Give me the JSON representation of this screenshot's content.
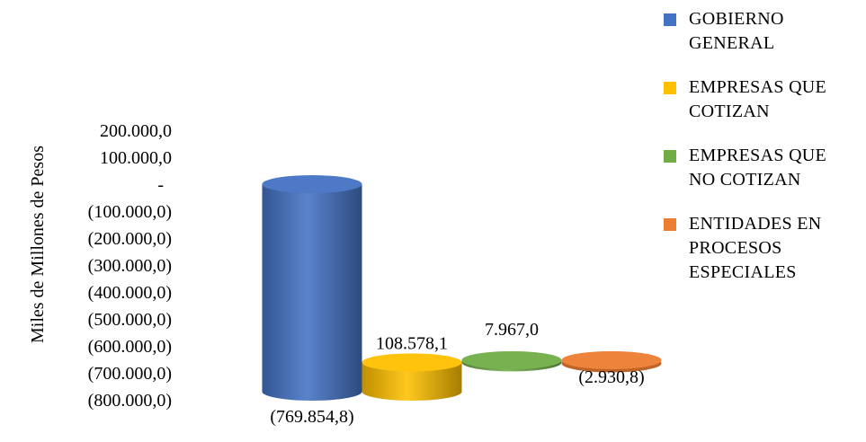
{
  "chart_data": {
    "type": "bar",
    "style": "3d-cylinder",
    "ylabel": "Miles de Millones de Pesos",
    "y_ticks": [
      "200.000,0",
      "100.000,0",
      "-",
      "(100.000,0)",
      "(200.000,0)",
      "(300.000,0)",
      "(400.000,0)",
      "(500.000,0)",
      "(600.000,0)",
      "(700.000,0)",
      "(800.000,0)"
    ],
    "ylim": [
      -800000,
      200000
    ],
    "grid": false,
    "legend_position": "right",
    "series": [
      {
        "name": "GOBIERNO GENERAL",
        "value": -769854.8,
        "label": "(769.854,8)",
        "color": "#4472C4"
      },
      {
        "name": "EMPRESAS QUE COTIZAN",
        "value": 108578.1,
        "label": "108.578,1",
        "color": "#FFC000"
      },
      {
        "name": "EMPRESAS QUE NO COTIZAN",
        "value": 7967.0,
        "label": "7.967,0",
        "color": "#70AD47"
      },
      {
        "name": "ENTIDADES EN PROCESOS ESPECIALES",
        "value": -2930.8,
        "label": "(2.930,8)",
        "color": "#ED7D31"
      }
    ]
  },
  "legend": {
    "items": [
      {
        "lines": [
          "GOBIERNO",
          "GENERAL"
        ],
        "color": "#4472C4"
      },
      {
        "lines": [
          "EMPRESAS QUE",
          "COTIZAN"
        ],
        "color": "#FFC000"
      },
      {
        "lines": [
          "EMPRESAS QUE",
          "NO COTIZAN"
        ],
        "color": "#70AD47"
      },
      {
        "lines": [
          "ENTIDADES EN",
          "PROCESOS",
          "ESPECIALES"
        ],
        "color": "#ED7D31"
      }
    ]
  }
}
